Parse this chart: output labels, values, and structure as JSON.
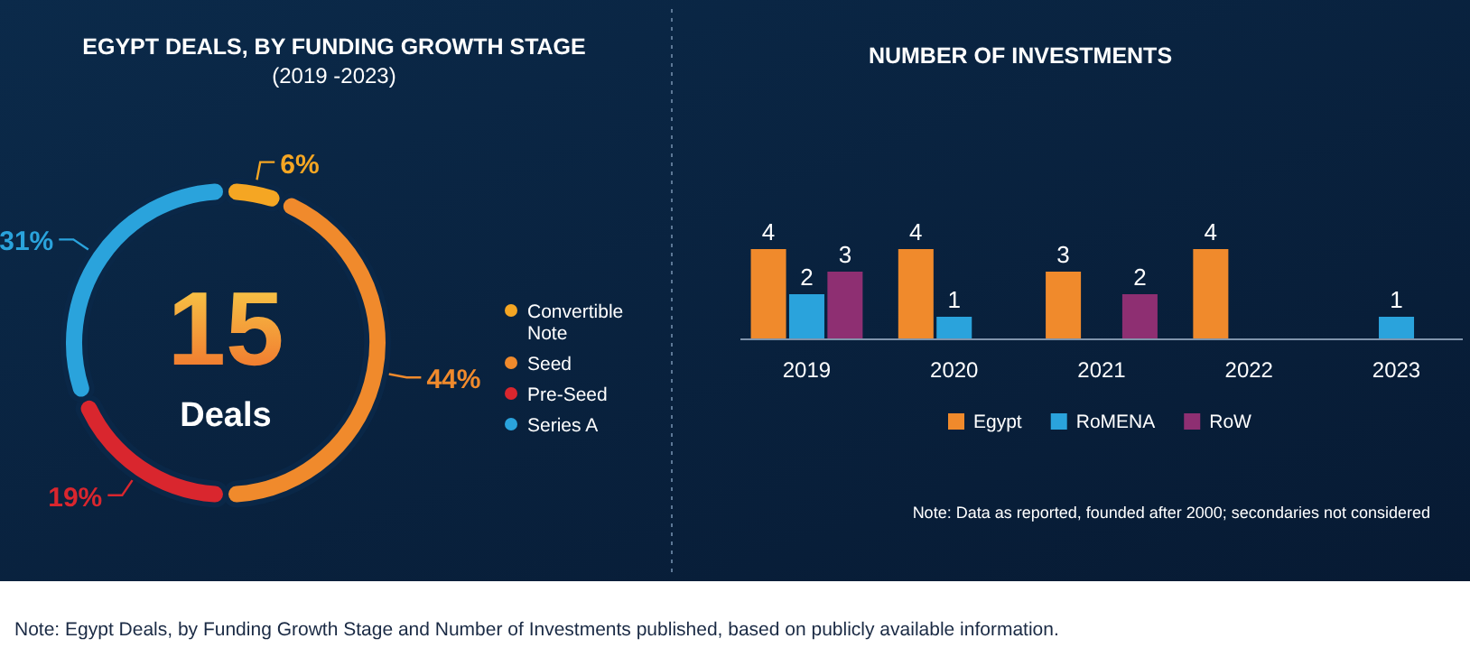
{
  "chart_data": [
    {
      "type": "donut",
      "title": "EGYPT DEALS, BY FUNDING GROWTH STAGE",
      "subtitle": "(2019 -2023)",
      "categories": [
        "Convertible Note",
        "Seed",
        "Pre-Seed",
        "Series A"
      ],
      "values": [
        6,
        44,
        19,
        31
      ],
      "colors": [
        "#f5a623",
        "#f08a2c",
        "#d9262e",
        "#2aa3dc"
      ],
      "value_labels": [
        "6%",
        "44%",
        "19%",
        "31%"
      ],
      "legend": "right",
      "annotations": [
        "15",
        "Deals"
      ]
    },
    {
      "type": "bar",
      "title": "NUMBER OF INVESTMENTS",
      "categories": [
        "2019",
        "2020",
        "2021",
        "2022",
        "2023"
      ],
      "series": [
        {
          "name": "Egypt",
          "color": "#f08a2c",
          "values": [
            4,
            4,
            3,
            4,
            null
          ]
        },
        {
          "name": "RoMENA",
          "color": "#2aa3dc",
          "values": [
            2,
            1,
            null,
            null,
            1
          ]
        },
        {
          "name": "RoW",
          "color": "#8e2f72",
          "values": [
            3,
            null,
            2,
            null,
            null
          ]
        }
      ],
      "data_labels": true,
      "legend": "bottom",
      "annotations": [
        "Note: Data as reported, founded after 2000; secondaries not considered",
        "Note: Egypt Deals, by Funding Growth Stage and Number of Investments published, based on publicly available information."
      ]
    }
  ]
}
